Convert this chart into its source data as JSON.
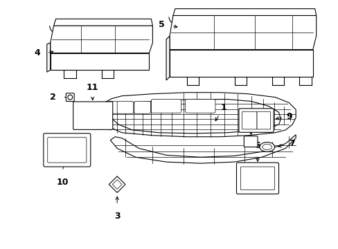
{
  "background_color": "#ffffff",
  "line_color": "#000000",
  "figure_width": 4.89,
  "figure_height": 3.6,
  "dpi": 100
}
